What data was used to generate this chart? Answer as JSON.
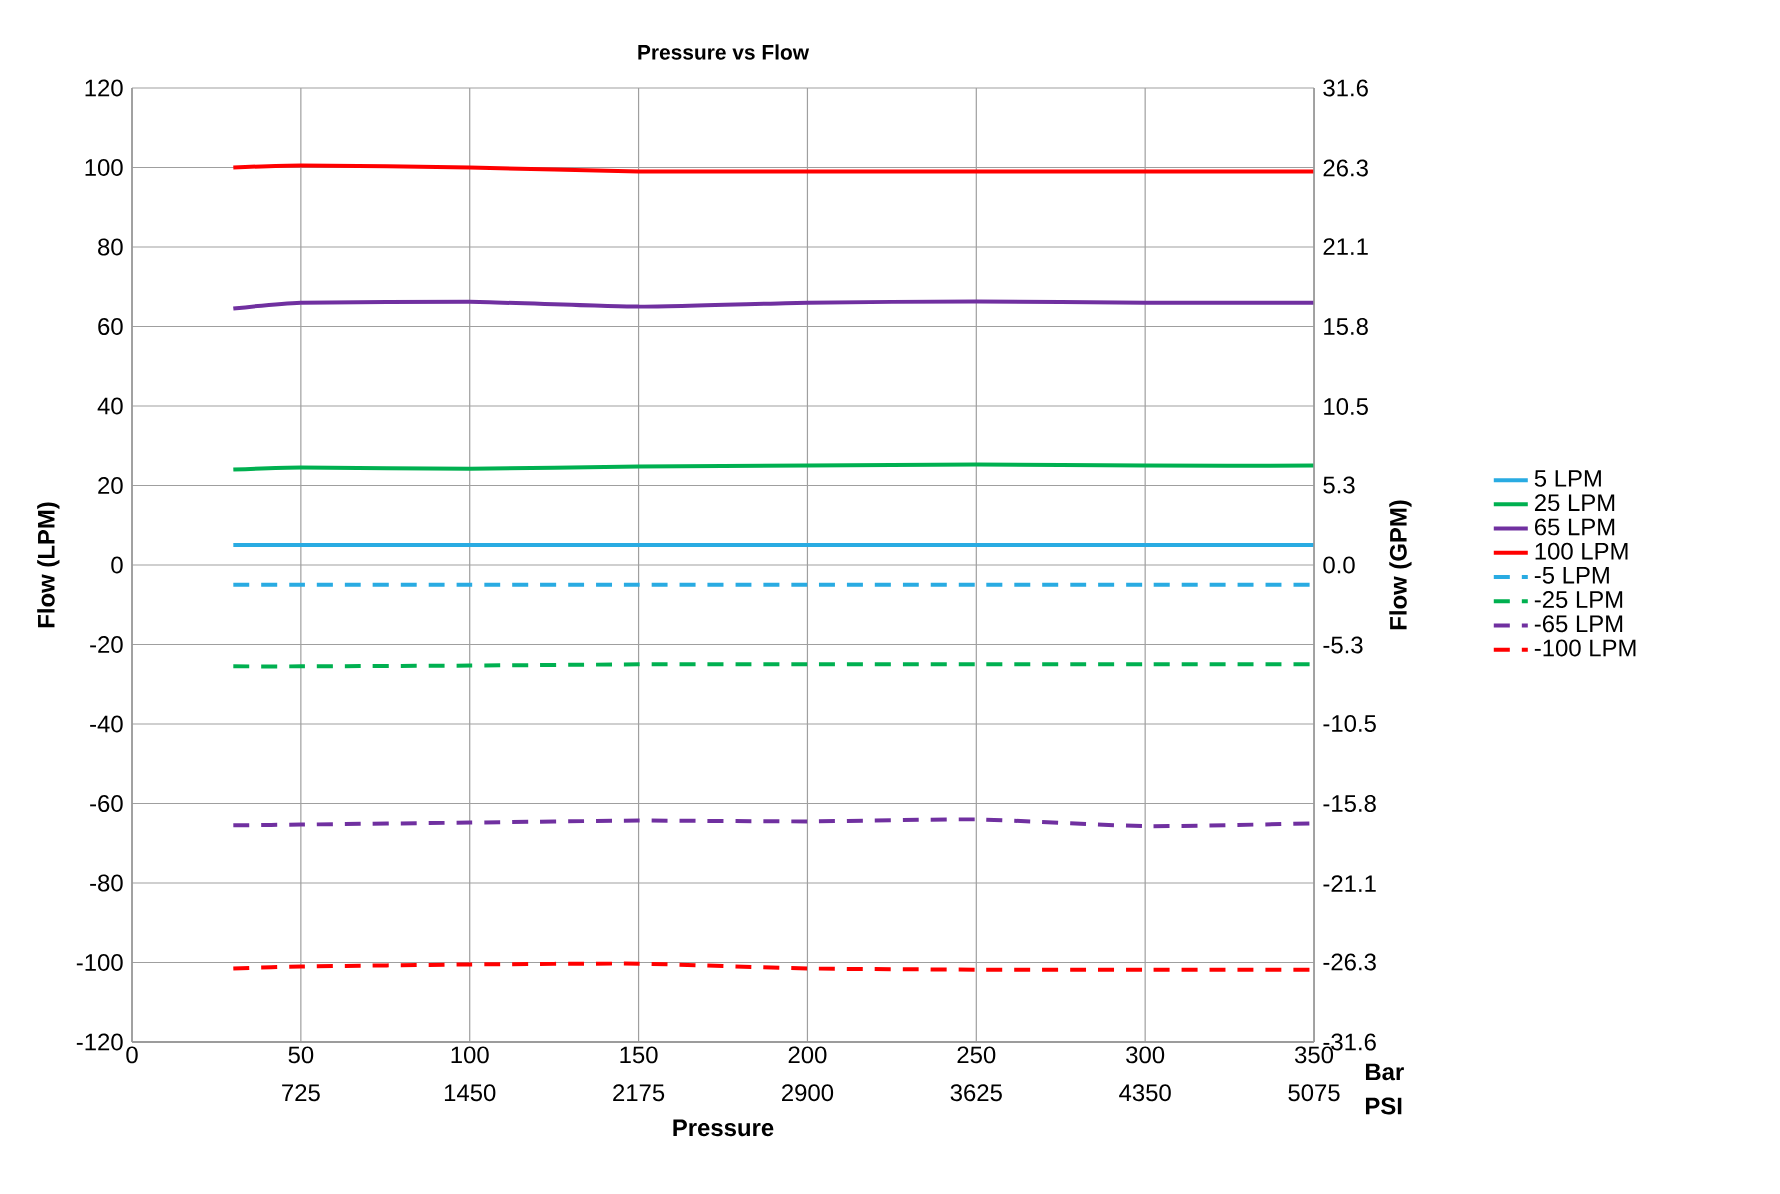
{
  "chart_data": {
    "type": "line",
    "title": "Pressure vs Flow",
    "xlabel": "Pressure",
    "ylabel": "Flow (LPM)",
    "y2label": "Flow (GPM)",
    "annotations": [
      "Bar",
      "PSI"
    ],
    "x": [
      30,
      50,
      100,
      150,
      200,
      250,
      300,
      350
    ],
    "xlim": [
      0,
      350
    ],
    "xticks": [
      0,
      50,
      100,
      150,
      200,
      250,
      300,
      350
    ],
    "x2lim": [
      0,
      5075
    ],
    "x2ticks": [
      725,
      1450,
      2175,
      2900,
      3625,
      4350,
      5075
    ],
    "ylim": [
      -120,
      120
    ],
    "yticks": [
      -120,
      -100,
      -80,
      -60,
      -40,
      -20,
      0,
      20,
      40,
      60,
      80,
      100,
      120
    ],
    "y2lim": [
      -31.6,
      31.6
    ],
    "y2ticks": [
      -31.6,
      -26.3,
      -21.1,
      -15.8,
      -10.5,
      -5.3,
      {
        "value": 0,
        "label": "0.0"
      },
      5.3,
      10.5,
      15.8,
      21.1,
      26.3,
      31.6
    ],
    "grid": true,
    "legend": "right",
    "series": [
      {
        "name": "5 LPM",
        "color": "#29abe2",
        "line_style": "solid",
        "values": [
          5,
          5,
          5,
          5,
          5,
          5,
          5,
          5
        ]
      },
      {
        "name": "25 LPM",
        "color": "#00b050",
        "line_style": "solid",
        "values": [
          24,
          24.5,
          24.2,
          24.8,
          25,
          25.3,
          25,
          25
        ]
      },
      {
        "name": "65 LPM",
        "color": "#7030a0",
        "line_style": "solid",
        "values": [
          64.5,
          66,
          66.2,
          65,
          66,
          66.3,
          66,
          66
        ]
      },
      {
        "name": "100 LPM",
        "color": "#ff0000",
        "line_style": "solid",
        "values": [
          100,
          100.5,
          100,
          99,
          99,
          99,
          99,
          99
        ]
      },
      {
        "name": "-5 LPM",
        "color": "#29abe2",
        "line_style": "dashed",
        "values": [
          -5,
          -5,
          -5,
          -5,
          -5,
          -5,
          -5,
          -5
        ]
      },
      {
        "name": "-25 LPM",
        "color": "#00b050",
        "line_style": "dashed",
        "values": [
          -25.5,
          -25.5,
          -25.3,
          -25,
          -25,
          -25,
          -25,
          -25
        ]
      },
      {
        "name": "-65 LPM",
        "color": "#7030a0",
        "line_style": "dashed",
        "values": [
          -65.5,
          -65.3,
          -64.8,
          -64.3,
          -64.5,
          -64,
          -65.7,
          -65
        ]
      },
      {
        "name": "-100 LPM",
        "color": "#ff0000",
        "line_style": "dashed",
        "values": [
          -101.5,
          -101,
          -100.5,
          -100.3,
          -101.5,
          -101.8,
          -101.8,
          -101.8
        ]
      }
    ]
  }
}
